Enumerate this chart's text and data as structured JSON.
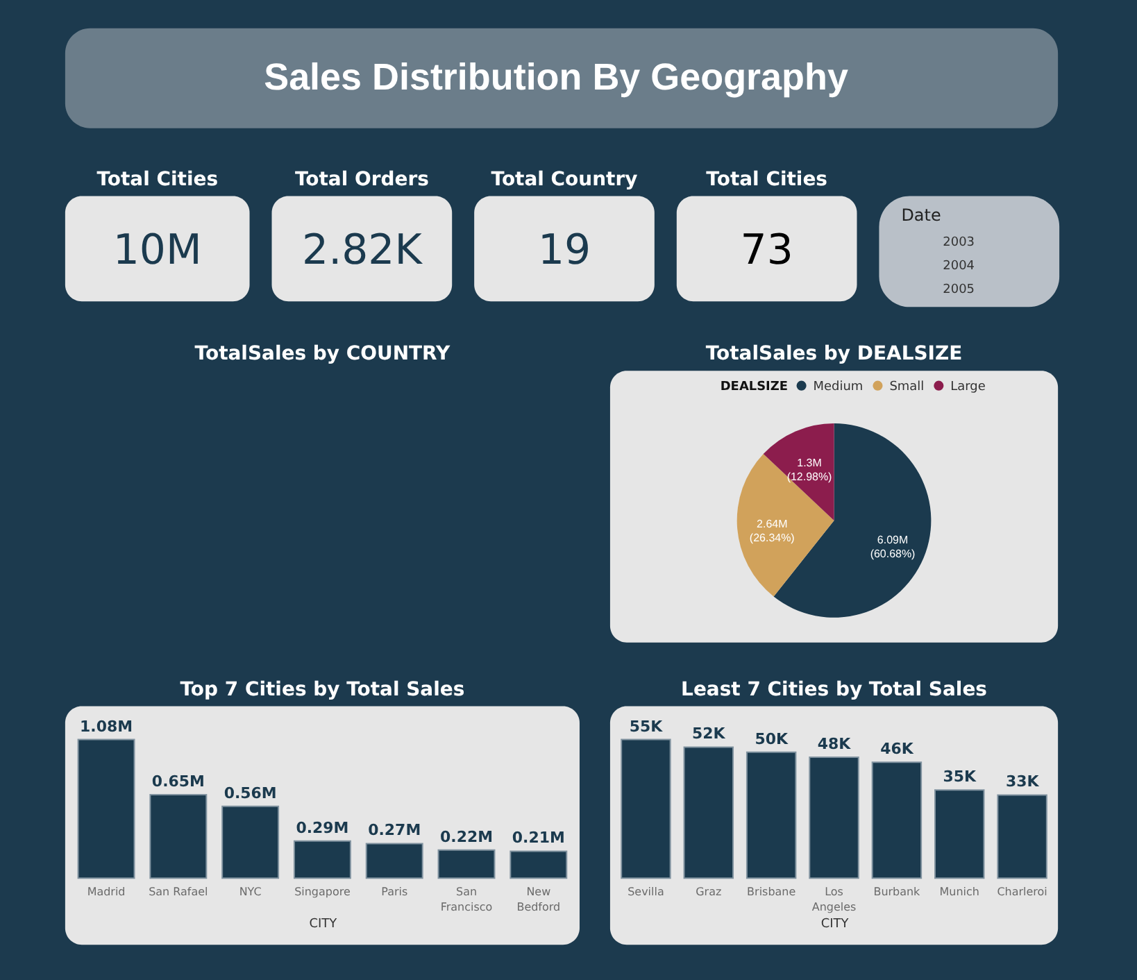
{
  "chart_data": [
    {
      "type": "other",
      "title": "Sales Distribution By Geography"
    },
    {
      "type": "other",
      "title": "Total Cities",
      "annotations": [
        "10M"
      ],
      "color": "#1b3a4e"
    },
    {
      "type": "other",
      "title": "Total Orders",
      "annotations": [
        "2.82K"
      ],
      "color": "#1b3a4e"
    },
    {
      "type": "other",
      "title": "Total Country",
      "annotations": [
        "19"
      ],
      "color": "#1b3a4e"
    },
    {
      "type": "other",
      "title": "Total Cities",
      "annotations": [
        "73"
      ],
      "color": "#000000"
    },
    {
      "type": "other",
      "title": "Date",
      "annotations": [
        "2003",
        "2004",
        "2005"
      ]
    },
    {
      "type": "other",
      "title": "TotalSales by COUNTRY"
    },
    {
      "type": "pie",
      "title": "TotalSales by DEALSIZE",
      "legend_title": "DEALSIZE",
      "legend": "top",
      "categories": [
        "Medium",
        "Small",
        "Large"
      ],
      "values": [
        60.68,
        26.34,
        12.98
      ],
      "colors": [
        "#1b3a4e",
        "#d1a25b",
        "#8c1d4d"
      ],
      "value_labels": [
        "6.09M (60.68%)",
        "2.64M (26.34%)",
        "1.3M (12.98%)"
      ]
    },
    {
      "type": "bar",
      "title": "Top 7 Cities by Total Sales",
      "xlabel": "CITY",
      "tick_labels": "x",
      "categories": [
        "Madrid",
        "San Rafael",
        "NYC",
        "Singapore",
        "Paris",
        "San Francisco",
        "New Bedford"
      ],
      "values": [
        1.08,
        0.65,
        0.56,
        0.29,
        0.27,
        0.22,
        0.21
      ],
      "color": "#1b3a4e",
      "value_labels": [
        "1.08M",
        "0.65M",
        "0.56M",
        "0.29M",
        "0.27M",
        "0.22M",
        "0.21M"
      ]
    },
    {
      "type": "bar",
      "title": "Least 7 Cities by Total Sales",
      "xlabel": "CITY",
      "tick_labels": "x",
      "categories": [
        "Sevilla",
        "Graz",
        "Brisbane",
        "Los Angeles",
        "Burbank",
        "Munich",
        "Charleroi"
      ],
      "values": [
        55,
        52,
        50,
        48,
        46,
        35,
        33
      ],
      "color": "#1b3a4e",
      "value_labels": [
        "55K",
        "52K",
        "50K",
        "48K",
        "46K",
        "35K",
        "33K"
      ]
    }
  ]
}
